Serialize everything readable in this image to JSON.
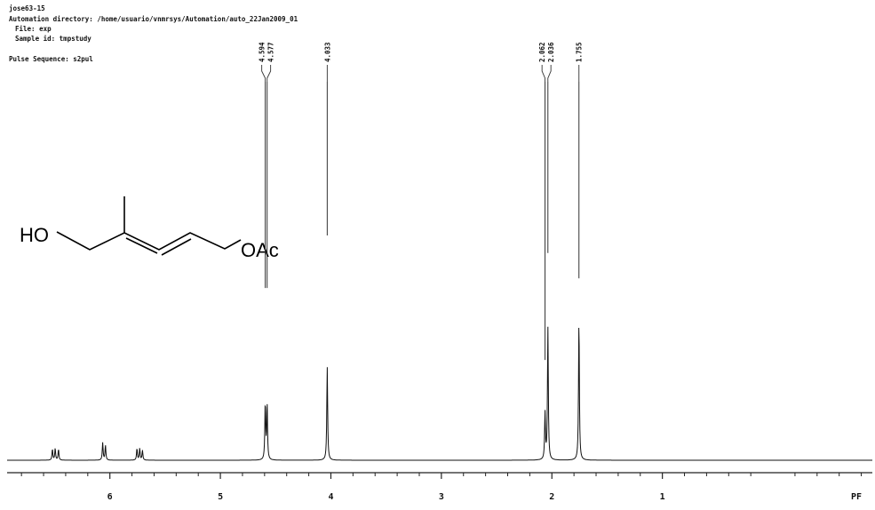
{
  "header": {
    "sample_name": "jose63-15",
    "automation_directory": "Automation directory: /home/usuario/vnmrsys/Automation/auto_22Jan2009_01",
    "file": "File: exp",
    "sample_id": "Sample id: tmpstudy",
    "pulse_sequence": "Pulse Sequence: s2pul"
  },
  "molecule": {
    "left_group": "HO",
    "right_group": "OAc"
  },
  "chart_data": {
    "type": "line",
    "title": "",
    "xlabel": "PF",
    "ylabel": "",
    "x_reversed": true,
    "xlim": [
      6.93,
      -0.9
    ],
    "x_ticks": [
      6,
      5,
      4,
      3,
      2,
      1
    ],
    "peak_labels": [
      "4.594",
      "4.577",
      "4.033",
      "2.062",
      "2.036",
      "1.755"
    ],
    "peaks": [
      {
        "shift": 6.52,
        "height": 0.028
      },
      {
        "shift": 6.495,
        "height": 0.03
      },
      {
        "shift": 6.465,
        "height": 0.028
      },
      {
        "shift": 6.065,
        "height": 0.045
      },
      {
        "shift": 6.04,
        "height": 0.038
      },
      {
        "shift": 5.755,
        "height": 0.03
      },
      {
        "shift": 5.73,
        "height": 0.03
      },
      {
        "shift": 5.705,
        "height": 0.025
      },
      {
        "shift": 4.594,
        "height": 0.145
      },
      {
        "shift": 4.577,
        "height": 0.14
      },
      {
        "shift": 4.033,
        "height": 0.24
      },
      {
        "shift": 2.062,
        "height": 0.12
      },
      {
        "shift": 2.036,
        "height": 0.34
      },
      {
        "shift": 1.755,
        "height": 0.36
      }
    ],
    "integral_lines": [
      {
        "shift": 4.594,
        "level": 0.53
      },
      {
        "shift": 4.577,
        "level": 0.53
      },
      {
        "shift": 4.033,
        "level": 0.395
      },
      {
        "shift": 2.062,
        "level": 0.715
      },
      {
        "shift": 2.036,
        "level": 0.44
      },
      {
        "shift": 1.755,
        "level": 0.505
      }
    ]
  }
}
